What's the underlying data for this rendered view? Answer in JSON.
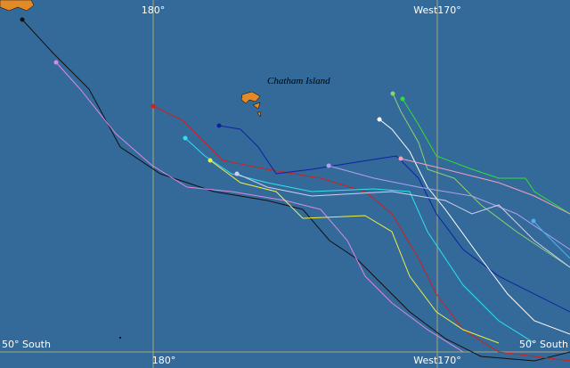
{
  "grid_labels": {
    "top_meridian_180": "180°",
    "top_meridian_170w": "West170°",
    "bottom_meridian_180": "180°",
    "bottom_meridian_170w": "West170°",
    "left_parallel": "50° South",
    "right_parallel": "50° South"
  },
  "place_labels": {
    "island": "Chatham Island"
  }
}
